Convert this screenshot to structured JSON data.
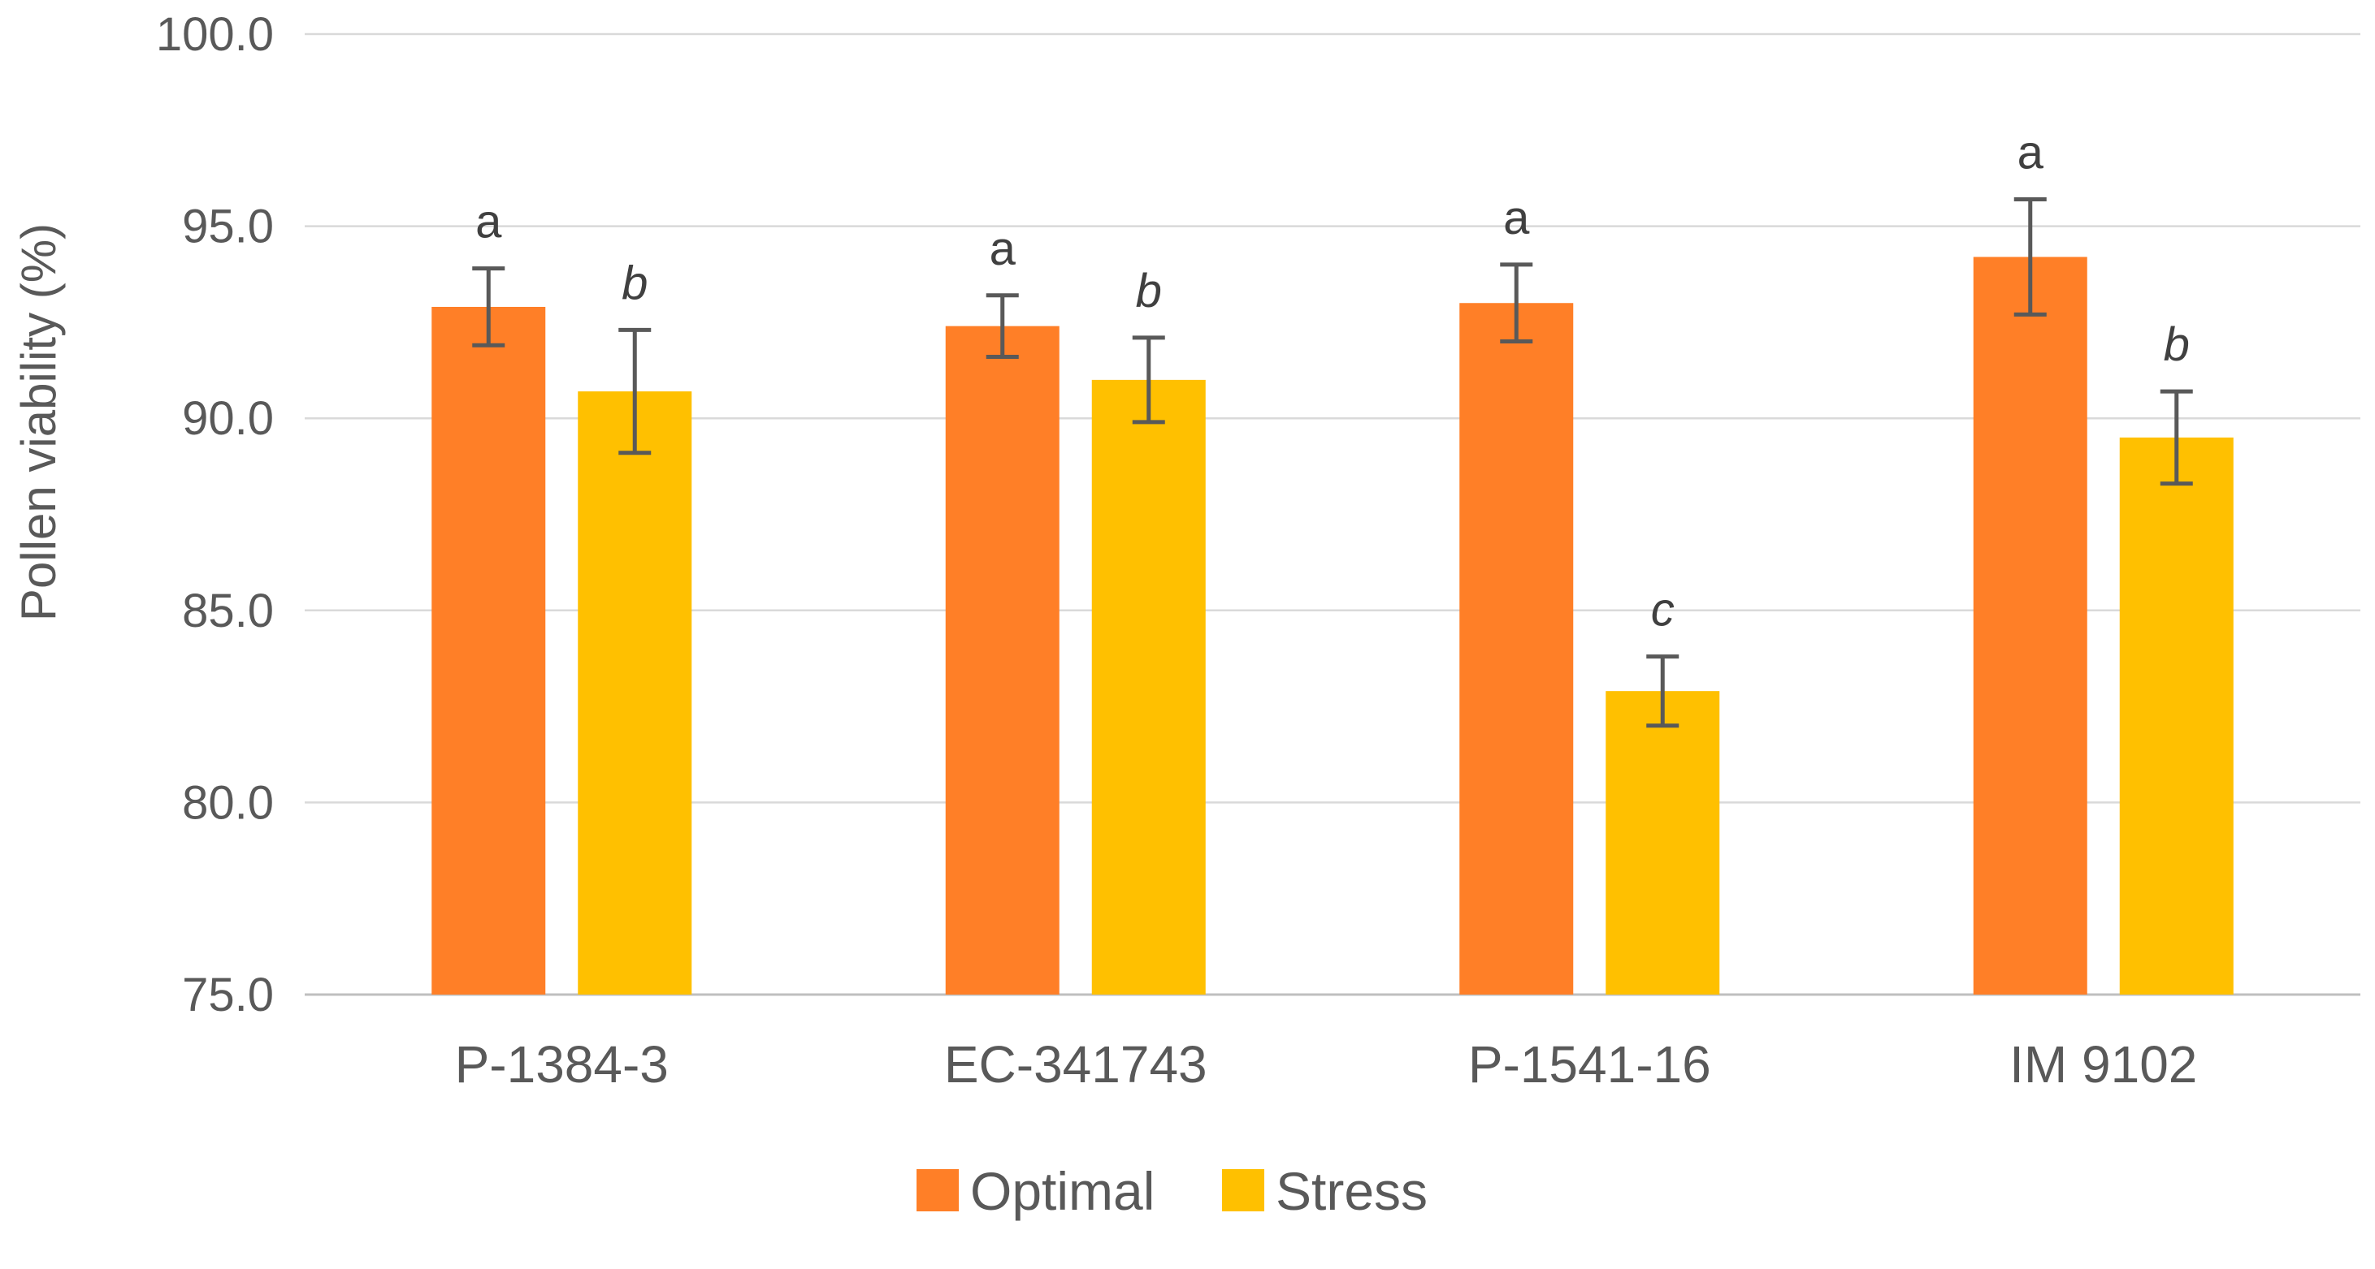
{
  "chart_data": {
    "type": "bar",
    "title": "",
    "xlabel": "",
    "ylabel": "Pollen viability (%)",
    "ylim": [
      75.0,
      100.0
    ],
    "yticks": [
      "75.0",
      "80.0",
      "85.0",
      "90.0",
      "95.0",
      "100.0"
    ],
    "grid": true,
    "legend_position": "bottom",
    "categories": [
      "P-1384-3",
      "EC-341743",
      "P-1541-16",
      "IM 9102"
    ],
    "series": [
      {
        "name": "Optimal",
        "color": "#FF7F27",
        "values": [
          92.9,
          92.4,
          93.0,
          94.2
        ],
        "errors": [
          1.0,
          0.8,
          1.0,
          1.5
        ],
        "significance": [
          "a",
          "a",
          "a",
          "a"
        ],
        "significance_italic": false
      },
      {
        "name": "Stress",
        "color": "#FFC000",
        "values": [
          90.7,
          91.0,
          82.9,
          89.5
        ],
        "errors": [
          1.6,
          1.1,
          0.9,
          1.2
        ],
        "significance": [
          "b",
          "b",
          "c",
          "b"
        ],
        "significance_italic": true
      }
    ]
  }
}
